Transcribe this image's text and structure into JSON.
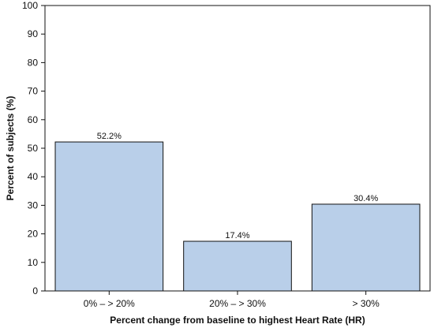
{
  "chart_data": {
    "type": "bar",
    "categories": [
      "0% – > 20%",
      "20% – > 30%",
      "> 30%"
    ],
    "values": [
      52.2,
      17.4,
      30.4
    ],
    "data_labels": [
      "52.2%",
      "17.4%",
      "30.4%"
    ],
    "xlabel": "Percent change from baseline to highest Heart Rate (HR)",
    "ylabel": "Percent of subjects (%)",
    "ylim": [
      0,
      100
    ],
    "yticks": [
      0,
      10,
      20,
      30,
      40,
      50,
      60,
      70,
      80,
      90,
      100
    ],
    "grid": false,
    "legend": "none",
    "bar_color": "#b9cfe9",
    "bar_edge_color": "#111111",
    "axis_color": "#111111"
  }
}
